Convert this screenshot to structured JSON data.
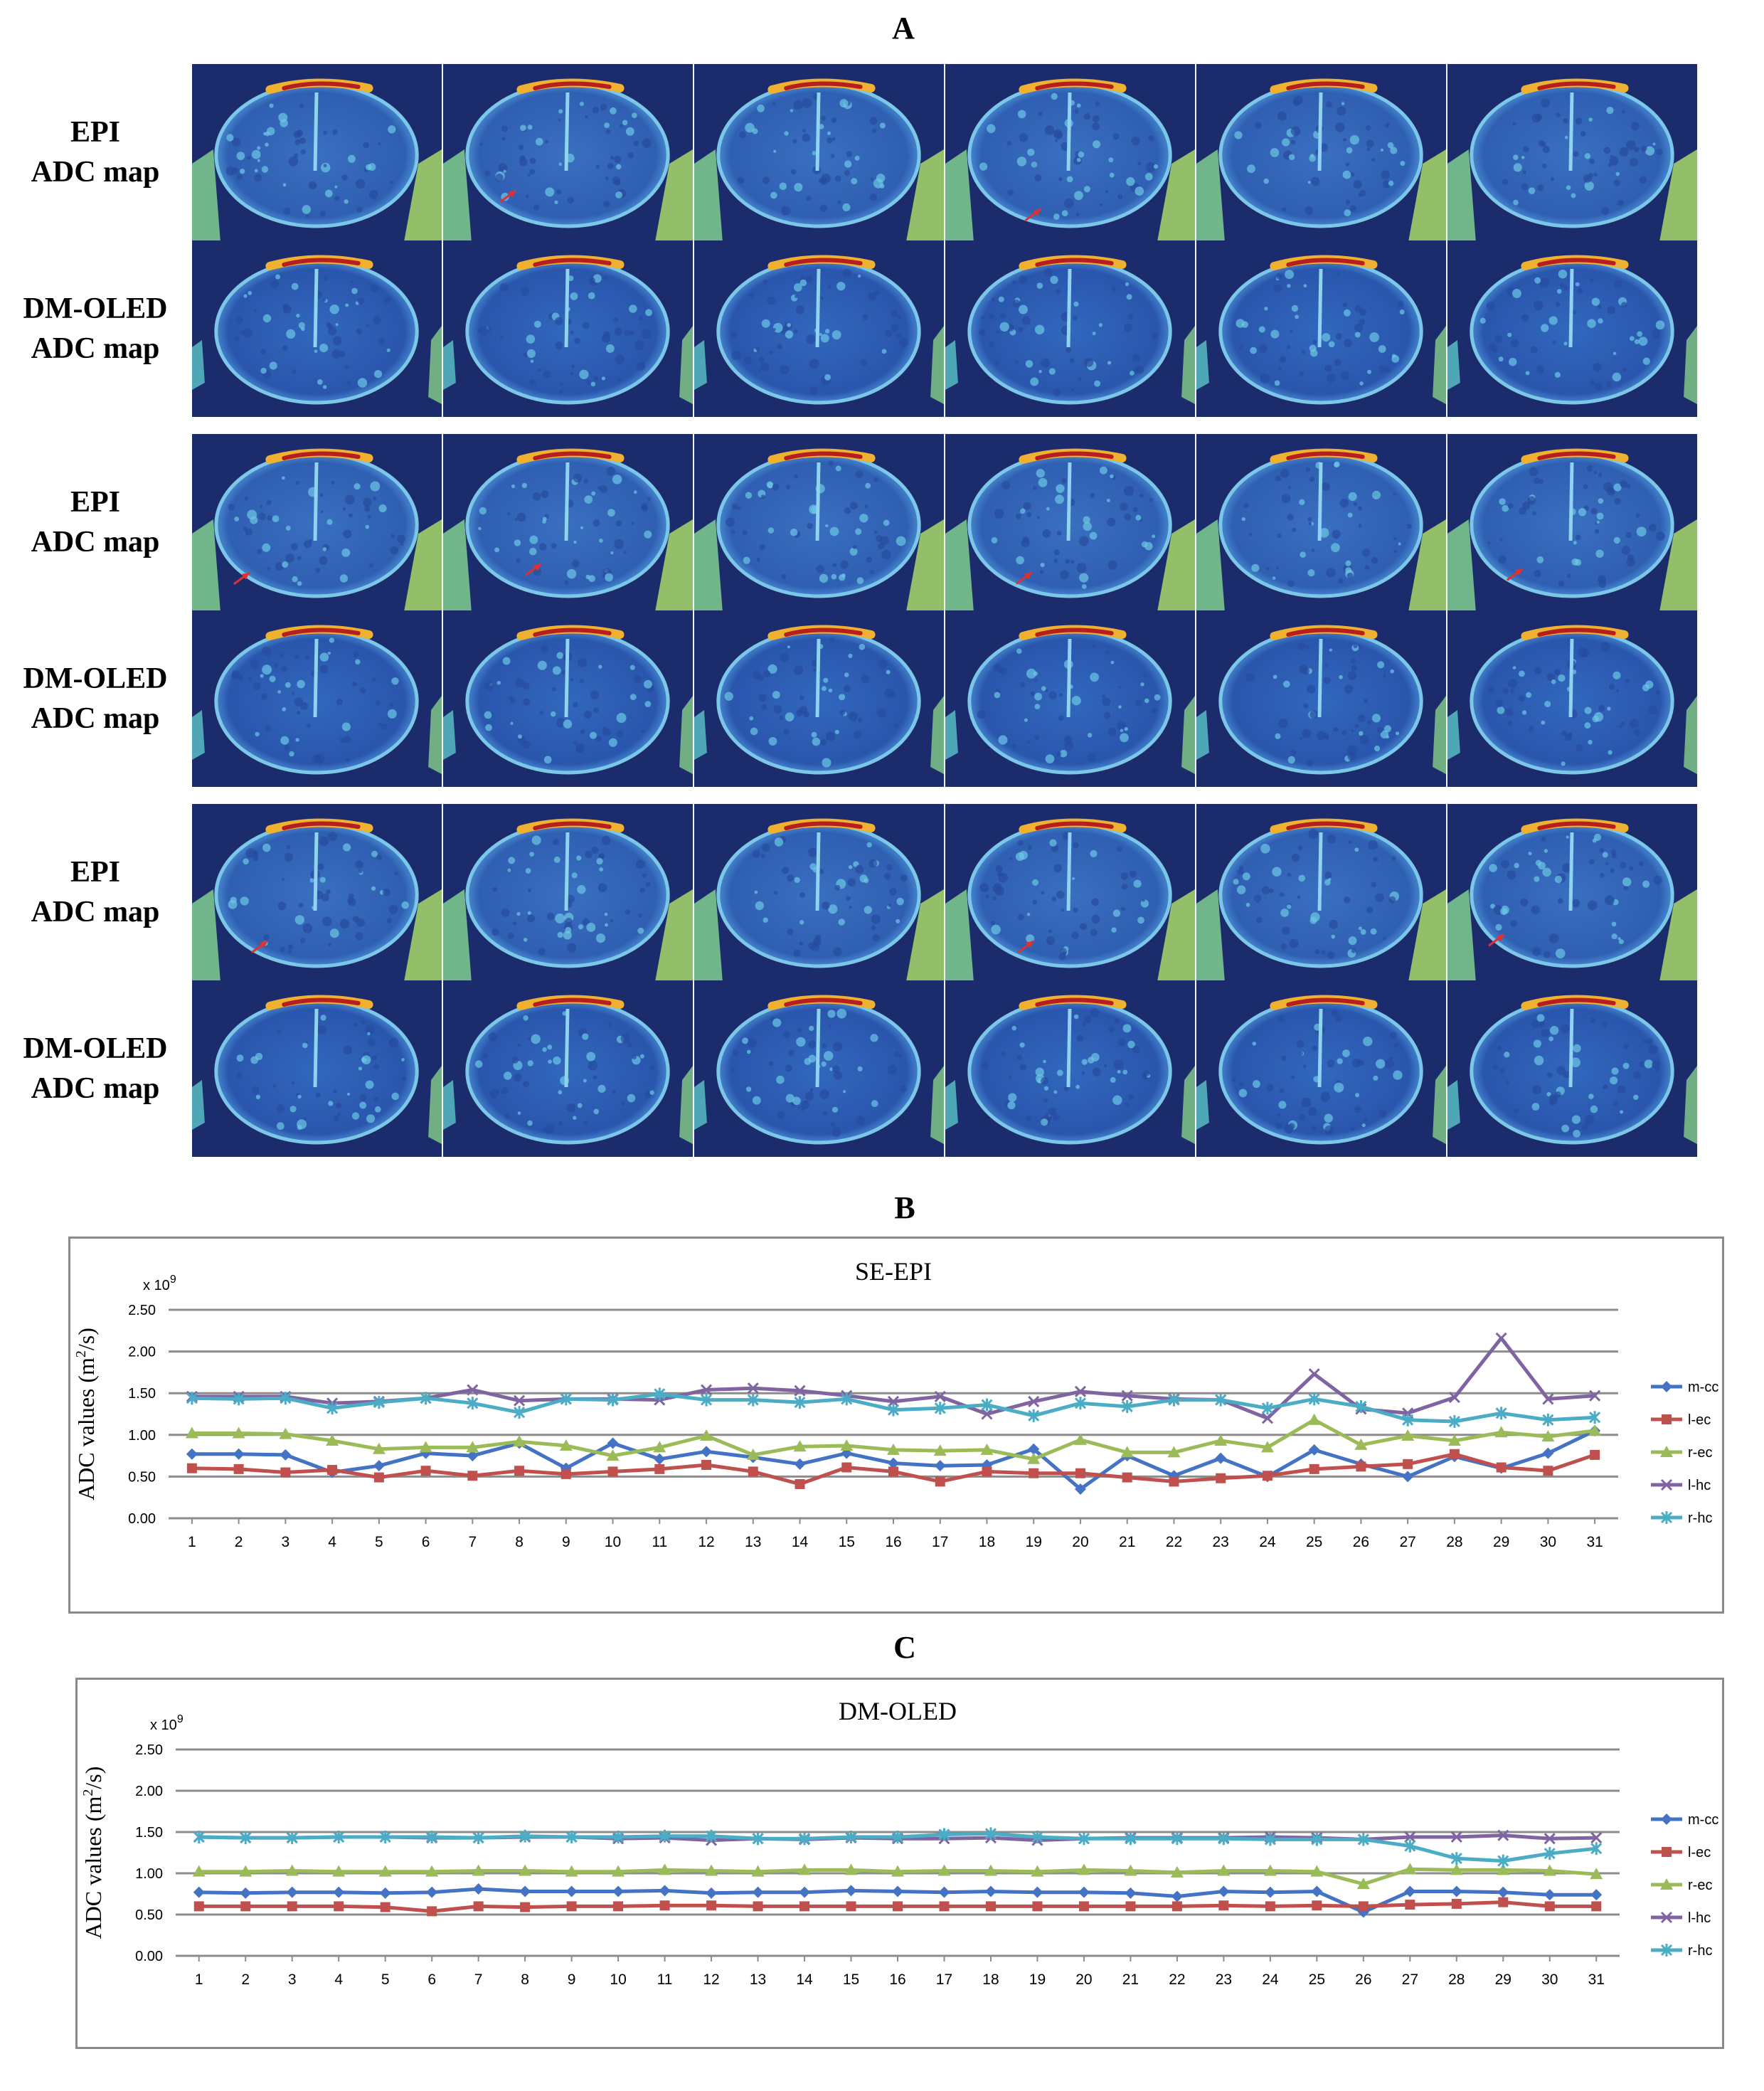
{
  "panels": {
    "A": "A",
    "B": "B",
    "C": "C"
  },
  "mri_rows": [
    {
      "line1": "EPI",
      "line2": "ADC map",
      "kind": "epi",
      "arrows": [
        false,
        true,
        false,
        true,
        false,
        false
      ]
    },
    {
      "line1": "DM-OLED",
      "line2": "ADC map",
      "kind": "oled",
      "arrows": [
        false,
        false,
        false,
        false,
        false,
        false
      ]
    },
    {
      "line1": "EPI",
      "line2": "ADC map",
      "kind": "epi",
      "arrows": [
        true,
        true,
        false,
        true,
        false,
        true
      ]
    },
    {
      "line1": "DM-OLED",
      "line2": "ADC map",
      "kind": "oled",
      "arrows": [
        false,
        false,
        false,
        false,
        false,
        false
      ]
    },
    {
      "line1": "EPI",
      "line2": "ADC map",
      "kind": "epi",
      "arrows": [
        true,
        false,
        false,
        true,
        false,
        true
      ]
    },
    {
      "line1": "DM-OLED",
      "line2": "ADC map",
      "kind": "oled",
      "arrows": [
        false,
        false,
        false,
        false,
        false,
        false
      ]
    }
  ],
  "colors": {
    "m-cc": "#4472c4",
    "l-ec": "#c0504d",
    "r-ec": "#9bbb59",
    "l-hc": "#8064a2",
    "r-hc": "#4bacc6",
    "gridline": "#8c8c8c",
    "frame": "#8a8a8a",
    "arrow": "#e03030"
  },
  "chart_data": [
    {
      "type": "line",
      "title": "SE-EPI",
      "ylabel_prefix": "ADC values (m",
      "ylabel_sup": "2",
      "ylabel_suffix": "/s)",
      "scale_label": "x 10",
      "scale_exp": "9",
      "ylim": [
        0,
        2.5
      ],
      "yticks": [
        "0.00",
        "0.50",
        "1.00",
        "1.50",
        "2.00",
        "2.50"
      ],
      "x": [
        "1",
        "2",
        "3",
        "4",
        "5",
        "6",
        "7",
        "8",
        "9",
        "10",
        "11",
        "12",
        "13",
        "14",
        "15",
        "16",
        "17",
        "18",
        "19",
        "20",
        "21",
        "22",
        "23",
        "24",
        "25",
        "26",
        "27",
        "28",
        "29",
        "30",
        "31"
      ],
      "series": [
        {
          "name": "m-cc",
          "marker": "diamond",
          "values": [
            0.77,
            0.77,
            0.76,
            0.55,
            0.63,
            0.78,
            0.75,
            0.9,
            0.6,
            0.9,
            0.71,
            0.8,
            0.73,
            0.65,
            0.78,
            0.66,
            0.63,
            0.64,
            0.83,
            0.35,
            0.75,
            0.51,
            0.72,
            0.5,
            0.82,
            0.65,
            0.5,
            0.74,
            0.6,
            0.78,
            1.05
          ]
        },
        {
          "name": "l-ec",
          "marker": "square",
          "values": [
            0.6,
            0.59,
            0.55,
            0.58,
            0.49,
            0.57,
            0.51,
            0.57,
            0.53,
            0.56,
            0.59,
            0.64,
            0.56,
            0.41,
            0.61,
            0.56,
            0.44,
            0.56,
            0.54,
            0.54,
            0.49,
            0.44,
            0.48,
            0.51,
            0.59,
            0.62,
            0.65,
            0.77,
            0.61,
            0.57,
            0.76
          ]
        },
        {
          "name": "r-ec",
          "marker": "triangle",
          "values": [
            1.02,
            1.02,
            1.01,
            0.93,
            0.83,
            0.85,
            0.85,
            0.92,
            0.87,
            0.75,
            0.85,
            0.99,
            0.76,
            0.86,
            0.87,
            0.82,
            0.81,
            0.82,
            0.71,
            0.94,
            0.79,
            0.79,
            0.93,
            0.85,
            1.18,
            0.88,
            0.99,
            0.93,
            1.03,
            0.98,
            1.05
          ]
        },
        {
          "name": "l-hc",
          "marker": "x",
          "values": [
            1.46,
            1.46,
            1.46,
            1.38,
            1.4,
            1.44,
            1.54,
            1.41,
            1.43,
            1.43,
            1.42,
            1.54,
            1.56,
            1.53,
            1.47,
            1.4,
            1.46,
            1.25,
            1.4,
            1.52,
            1.47,
            1.43,
            1.42,
            1.2,
            1.73,
            1.31,
            1.26,
            1.45,
            2.16,
            1.43,
            1.47
          ]
        },
        {
          "name": "r-hc",
          "marker": "star",
          "values": [
            1.44,
            1.43,
            1.44,
            1.32,
            1.39,
            1.44,
            1.38,
            1.27,
            1.43,
            1.42,
            1.49,
            1.42,
            1.42,
            1.39,
            1.43,
            1.3,
            1.32,
            1.36,
            1.23,
            1.38,
            1.34,
            1.42,
            1.42,
            1.32,
            1.43,
            1.34,
            1.18,
            1.16,
            1.26,
            1.18,
            1.21
          ]
        }
      ]
    },
    {
      "type": "line",
      "title": "DM-OLED",
      "ylabel_prefix": "ADC values (m",
      "ylabel_sup": "2",
      "ylabel_suffix": "/s)",
      "scale_label": "x 10",
      "scale_exp": "9",
      "ylim": [
        0,
        2.5
      ],
      "yticks": [
        "0.00",
        "0.50",
        "1.00",
        "1.50",
        "2.00",
        "2.50"
      ],
      "x": [
        "1",
        "2",
        "3",
        "4",
        "5",
        "6",
        "7",
        "8",
        "9",
        "10",
        "11",
        "12",
        "13",
        "14",
        "15",
        "16",
        "17",
        "18",
        "19",
        "20",
        "21",
        "22",
        "23",
        "24",
        "25",
        "26",
        "27",
        "28",
        "29",
        "30",
        "31"
      ],
      "series": [
        {
          "name": "m-cc",
          "marker": "diamond",
          "values": [
            0.77,
            0.76,
            0.77,
            0.77,
            0.76,
            0.77,
            0.81,
            0.78,
            0.78,
            0.78,
            0.79,
            0.76,
            0.77,
            0.77,
            0.79,
            0.78,
            0.77,
            0.78,
            0.77,
            0.77,
            0.76,
            0.72,
            0.78,
            0.77,
            0.78,
            0.53,
            0.78,
            0.78,
            0.77,
            0.74,
            0.74
          ]
        },
        {
          "name": "l-ec",
          "marker": "square",
          "values": [
            0.6,
            0.6,
            0.6,
            0.6,
            0.59,
            0.54,
            0.6,
            0.59,
            0.6,
            0.6,
            0.61,
            0.61,
            0.6,
            0.6,
            0.6,
            0.6,
            0.6,
            0.6,
            0.6,
            0.6,
            0.6,
            0.6,
            0.61,
            0.6,
            0.61,
            0.6,
            0.62,
            0.63,
            0.65,
            0.6,
            0.6
          ]
        },
        {
          "name": "r-ec",
          "marker": "triangle",
          "values": [
            1.02,
            1.02,
            1.03,
            1.02,
            1.02,
            1.02,
            1.03,
            1.03,
            1.02,
            1.02,
            1.04,
            1.03,
            1.02,
            1.04,
            1.04,
            1.02,
            1.03,
            1.03,
            1.02,
            1.04,
            1.03,
            1.01,
            1.03,
            1.03,
            1.02,
            0.87,
            1.05,
            1.04,
            1.04,
            1.03,
            0.99
          ]
        },
        {
          "name": "l-hc",
          "marker": "x",
          "values": [
            1.44,
            1.43,
            1.43,
            1.44,
            1.44,
            1.43,
            1.43,
            1.44,
            1.44,
            1.42,
            1.43,
            1.4,
            1.42,
            1.41,
            1.43,
            1.42,
            1.42,
            1.43,
            1.4,
            1.42,
            1.43,
            1.43,
            1.43,
            1.44,
            1.43,
            1.41,
            1.44,
            1.44,
            1.46,
            1.42,
            1.43
          ]
        },
        {
          "name": "r-hc",
          "marker": "star",
          "values": [
            1.44,
            1.43,
            1.43,
            1.44,
            1.44,
            1.44,
            1.43,
            1.45,
            1.44,
            1.44,
            1.45,
            1.45,
            1.42,
            1.42,
            1.44,
            1.44,
            1.47,
            1.48,
            1.44,
            1.42,
            1.42,
            1.42,
            1.42,
            1.41,
            1.41,
            1.41,
            1.33,
            1.18,
            1.15,
            1.24,
            1.3
          ]
        }
      ]
    }
  ]
}
